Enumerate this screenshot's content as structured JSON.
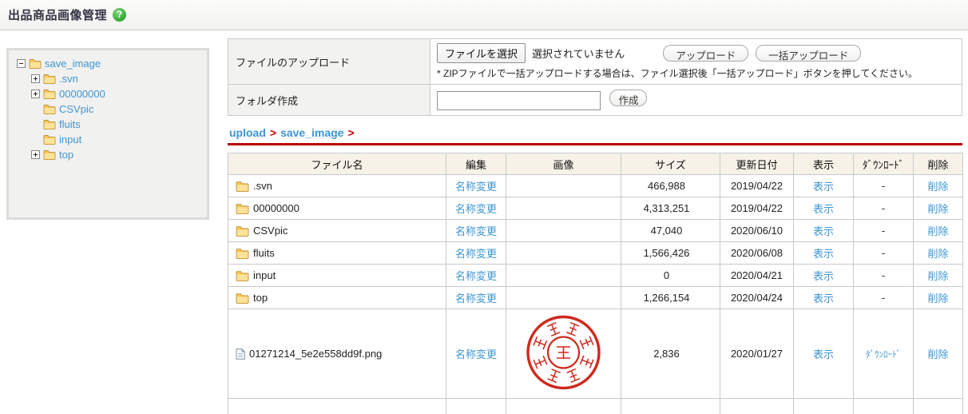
{
  "page": {
    "title": "出品商品画像管理",
    "help_glyph": "?"
  },
  "tree": {
    "items": [
      {
        "label": "save_image",
        "level": 0,
        "toggle": "minus"
      },
      {
        "label": ".svn",
        "level": 1,
        "toggle": "plus"
      },
      {
        "label": "00000000",
        "level": 1,
        "toggle": "plus"
      },
      {
        "label": "CSVpic",
        "level": 1,
        "toggle": "none"
      },
      {
        "label": "fluits",
        "level": 1,
        "toggle": "none"
      },
      {
        "label": "input",
        "level": 1,
        "toggle": "none"
      },
      {
        "label": "top",
        "level": 1,
        "toggle": "plus"
      }
    ]
  },
  "upload_form": {
    "file_label": "ファイルのアップロード",
    "choose_file_button": "ファイルを選択",
    "file_status": "選択されていません",
    "upload_button": "アップロード",
    "bulk_upload_button": "一括アップロード",
    "zip_note": "* ZIPファイルで一括アップロードする場合は、ファイル選択後「一括アップロード」ボタンを押してください。",
    "folder_label": "フォルダ作成",
    "folder_input_value": "",
    "create_button": "作成"
  },
  "breadcrumb": {
    "links": [
      "upload",
      "save_image"
    ],
    "separator": ">"
  },
  "file_table": {
    "headers": [
      "ファイル名",
      "編集",
      "画像",
      "サイズ",
      "更新日付",
      "表示",
      "ﾀﾞｳﾝﾛｰﾄﾞ",
      "削除"
    ],
    "rename_link": "名称変更",
    "show_link": "表示",
    "delete_link": "削除",
    "download_link": "ﾀﾞｳﾝﾛｰﾄﾞ",
    "no_download": "-",
    "rows": [
      {
        "type": "folder",
        "name": ".svn",
        "size": "466,988",
        "date": "2019/04/22",
        "image": "",
        "downloadable": false
      },
      {
        "type": "folder",
        "name": "00000000",
        "size": "4,313,251",
        "date": "2019/04/22",
        "image": "",
        "downloadable": false
      },
      {
        "type": "folder",
        "name": "CSVpic",
        "size": "47,040",
        "date": "2020/06/10",
        "image": "",
        "downloadable": false
      },
      {
        "type": "folder",
        "name": "fluits",
        "size": "1,566,426",
        "date": "2020/06/08",
        "image": "",
        "downloadable": false
      },
      {
        "type": "folder",
        "name": "input",
        "size": "0",
        "date": "2020/04/21",
        "image": "",
        "downloadable": false
      },
      {
        "type": "folder",
        "name": "top",
        "size": "1,266,154",
        "date": "2020/04/24",
        "image": "",
        "downloadable": false
      },
      {
        "type": "file",
        "name": "01271214_5e2e558dd9f.png",
        "size": "2,836",
        "date": "2020/01/27",
        "image": "red-circular-seal-stamp",
        "downloadable": true
      }
    ]
  },
  "colors": {
    "link_blue": "#3e96d2",
    "breadcrumb_red": "#cc0000",
    "rule_red": "#bb0000",
    "seal_red": "#cf291d",
    "header_beige": "#f6f2e8"
  }
}
